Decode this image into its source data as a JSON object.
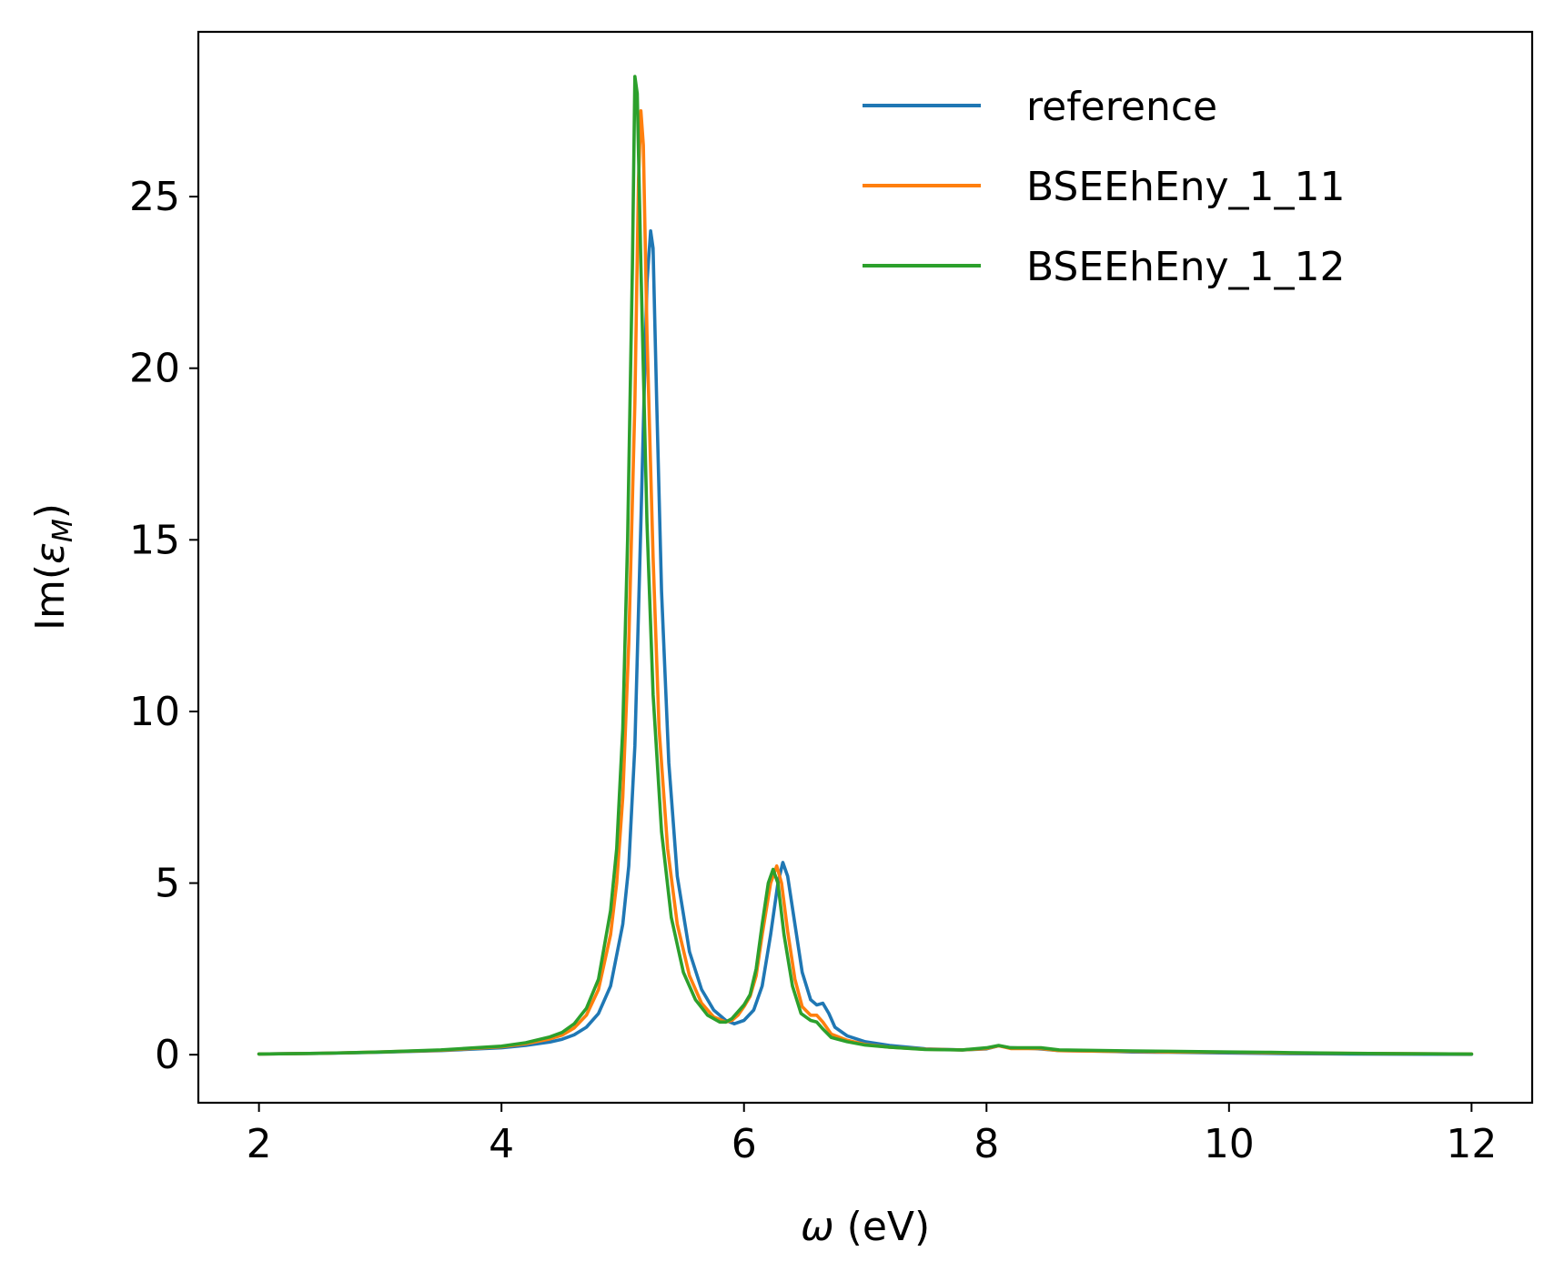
{
  "chart_data": {
    "type": "line",
    "title": "",
    "xlabel_symbol": "ω",
    "xlabel_unit": " (eV)",
    "ylabel_prefix": "Im(",
    "ylabel_symbol": "ε",
    "ylabel_subscript": "M",
    "ylabel_suffix": ")",
    "xlim": [
      1.5,
      12.5
    ],
    "ylim": [
      -1.4,
      29.8
    ],
    "xticks": [
      2,
      4,
      6,
      8,
      10,
      12
    ],
    "yticks": [
      0,
      5,
      10,
      15,
      20,
      25
    ],
    "grid": false,
    "legend_position": "top-right",
    "series": [
      {
        "name": "reference",
        "color": "#1f77b4",
        "points": [
          [
            2.0,
            0.02
          ],
          [
            2.5,
            0.04
          ],
          [
            3.0,
            0.07
          ],
          [
            3.5,
            0.12
          ],
          [
            4.0,
            0.2
          ],
          [
            4.2,
            0.27
          ],
          [
            4.4,
            0.37
          ],
          [
            4.5,
            0.45
          ],
          [
            4.6,
            0.58
          ],
          [
            4.7,
            0.8
          ],
          [
            4.8,
            1.2
          ],
          [
            4.9,
            2.0
          ],
          [
            5.0,
            3.8
          ],
          [
            5.05,
            5.5
          ],
          [
            5.1,
            9.0
          ],
          [
            5.15,
            15.5
          ],
          [
            5.2,
            22.5
          ],
          [
            5.23,
            24.0
          ],
          [
            5.25,
            23.5
          ],
          [
            5.28,
            19.0
          ],
          [
            5.32,
            13.5
          ],
          [
            5.38,
            8.5
          ],
          [
            5.45,
            5.2
          ],
          [
            5.55,
            3.0
          ],
          [
            5.65,
            1.9
          ],
          [
            5.75,
            1.3
          ],
          [
            5.85,
            1.0
          ],
          [
            5.92,
            0.9
          ],
          [
            6.0,
            1.0
          ],
          [
            6.08,
            1.3
          ],
          [
            6.15,
            2.0
          ],
          [
            6.22,
            3.5
          ],
          [
            6.28,
            5.0
          ],
          [
            6.32,
            5.6
          ],
          [
            6.36,
            5.2
          ],
          [
            6.42,
            3.8
          ],
          [
            6.48,
            2.4
          ],
          [
            6.55,
            1.6
          ],
          [
            6.6,
            1.45
          ],
          [
            6.65,
            1.5
          ],
          [
            6.7,
            1.2
          ],
          [
            6.75,
            0.8
          ],
          [
            6.85,
            0.55
          ],
          [
            7.0,
            0.38
          ],
          [
            7.2,
            0.27
          ],
          [
            7.5,
            0.17
          ],
          [
            7.8,
            0.14
          ],
          [
            8.0,
            0.17
          ],
          [
            8.1,
            0.26
          ],
          [
            8.2,
            0.2
          ],
          [
            8.4,
            0.18
          ],
          [
            8.6,
            0.12
          ],
          [
            9.0,
            0.1
          ],
          [
            9.2,
            0.08
          ],
          [
            9.5,
            0.07
          ],
          [
            10.0,
            0.05
          ],
          [
            10.5,
            0.03
          ],
          [
            11.0,
            0.02
          ],
          [
            12.0,
            0.01
          ]
        ]
      },
      {
        "name": "BSEEhEny_1_11",
        "color": "#ff7f0e",
        "points": [
          [
            2.0,
            0.02
          ],
          [
            2.5,
            0.04
          ],
          [
            3.0,
            0.08
          ],
          [
            3.5,
            0.13
          ],
          [
            4.0,
            0.23
          ],
          [
            4.2,
            0.32
          ],
          [
            4.4,
            0.46
          ],
          [
            4.5,
            0.57
          ],
          [
            4.6,
            0.78
          ],
          [
            4.7,
            1.15
          ],
          [
            4.8,
            1.9
          ],
          [
            4.9,
            3.5
          ],
          [
            4.95,
            5.0
          ],
          [
            5.0,
            7.5
          ],
          [
            5.05,
            12.0
          ],
          [
            5.1,
            19.0
          ],
          [
            5.13,
            25.5
          ],
          [
            5.15,
            27.5
          ],
          [
            5.17,
            26.5
          ],
          [
            5.2,
            21.0
          ],
          [
            5.25,
            14.5
          ],
          [
            5.3,
            9.5
          ],
          [
            5.37,
            6.0
          ],
          [
            5.45,
            3.8
          ],
          [
            5.55,
            2.3
          ],
          [
            5.65,
            1.5
          ],
          [
            5.75,
            1.1
          ],
          [
            5.85,
            0.95
          ],
          [
            5.9,
            1.0
          ],
          [
            5.95,
            1.15
          ],
          [
            6.0,
            1.4
          ],
          [
            6.05,
            1.7
          ],
          [
            6.1,
            2.3
          ],
          [
            6.15,
            3.5
          ],
          [
            6.22,
            5.0
          ],
          [
            6.27,
            5.5
          ],
          [
            6.31,
            5.0
          ],
          [
            6.36,
            3.6
          ],
          [
            6.42,
            2.2
          ],
          [
            6.48,
            1.4
          ],
          [
            6.55,
            1.15
          ],
          [
            6.6,
            1.15
          ],
          [
            6.65,
            0.95
          ],
          [
            6.72,
            0.6
          ],
          [
            6.85,
            0.42
          ],
          [
            7.0,
            0.3
          ],
          [
            7.2,
            0.22
          ],
          [
            7.5,
            0.16
          ],
          [
            7.8,
            0.14
          ],
          [
            8.0,
            0.18
          ],
          [
            8.1,
            0.26
          ],
          [
            8.2,
            0.18
          ],
          [
            8.45,
            0.18
          ],
          [
            8.6,
            0.12
          ],
          [
            9.0,
            0.1
          ],
          [
            9.2,
            0.1
          ],
          [
            9.5,
            0.08
          ],
          [
            10.0,
            0.07
          ],
          [
            10.5,
            0.05
          ],
          [
            11.0,
            0.04
          ],
          [
            12.0,
            0.02
          ]
        ]
      },
      {
        "name": "BSEEhEny_1_12",
        "color": "#2ca02c",
        "points": [
          [
            2.0,
            0.02
          ],
          [
            2.5,
            0.04
          ],
          [
            3.0,
            0.08
          ],
          [
            3.5,
            0.14
          ],
          [
            4.0,
            0.25
          ],
          [
            4.2,
            0.35
          ],
          [
            4.4,
            0.52
          ],
          [
            4.5,
            0.65
          ],
          [
            4.6,
            0.9
          ],
          [
            4.7,
            1.35
          ],
          [
            4.8,
            2.2
          ],
          [
            4.9,
            4.2
          ],
          [
            4.95,
            6.0
          ],
          [
            5.0,
            9.5
          ],
          [
            5.04,
            15.0
          ],
          [
            5.08,
            23.0
          ],
          [
            5.1,
            28.5
          ],
          [
            5.12,
            28.0
          ],
          [
            5.15,
            23.0
          ],
          [
            5.2,
            15.5
          ],
          [
            5.25,
            10.5
          ],
          [
            5.32,
            6.5
          ],
          [
            5.4,
            4.0
          ],
          [
            5.5,
            2.4
          ],
          [
            5.6,
            1.6
          ],
          [
            5.7,
            1.15
          ],
          [
            5.8,
            0.95
          ],
          [
            5.85,
            0.95
          ],
          [
            5.9,
            1.05
          ],
          [
            5.95,
            1.25
          ],
          [
            6.0,
            1.45
          ],
          [
            6.05,
            1.75
          ],
          [
            6.1,
            2.5
          ],
          [
            6.15,
            3.8
          ],
          [
            6.2,
            5.0
          ],
          [
            6.24,
            5.4
          ],
          [
            6.28,
            5.0
          ],
          [
            6.33,
            3.5
          ],
          [
            6.4,
            2.0
          ],
          [
            6.47,
            1.2
          ],
          [
            6.55,
            1.0
          ],
          [
            6.6,
            0.95
          ],
          [
            6.65,
            0.75
          ],
          [
            6.72,
            0.5
          ],
          [
            6.85,
            0.38
          ],
          [
            7.0,
            0.28
          ],
          [
            7.2,
            0.22
          ],
          [
            7.5,
            0.15
          ],
          [
            7.8,
            0.14
          ],
          [
            8.0,
            0.2
          ],
          [
            8.1,
            0.27
          ],
          [
            8.2,
            0.2
          ],
          [
            8.45,
            0.2
          ],
          [
            8.6,
            0.14
          ],
          [
            9.0,
            0.12
          ],
          [
            9.2,
            0.11
          ],
          [
            9.5,
            0.1
          ],
          [
            10.0,
            0.08
          ],
          [
            10.3,
            0.07
          ],
          [
            10.5,
            0.06
          ],
          [
            11.0,
            0.04
          ],
          [
            12.0,
            0.02
          ]
        ]
      }
    ]
  }
}
